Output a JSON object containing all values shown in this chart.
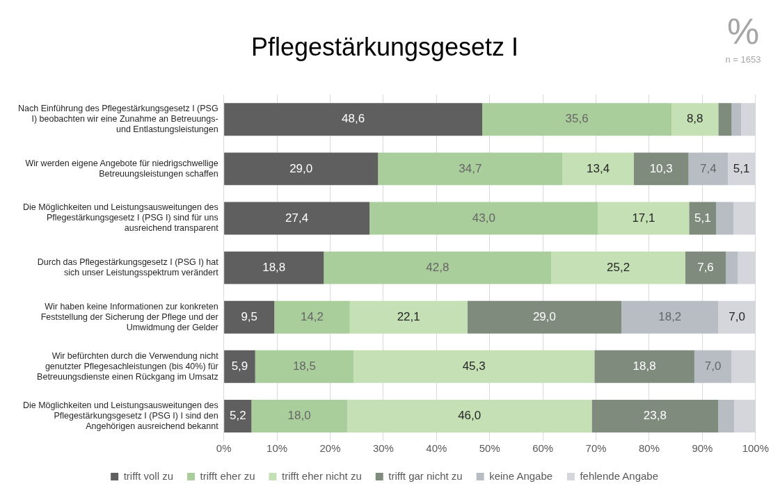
{
  "chart_data": {
    "type": "bar",
    "orientation": "horizontal",
    "stacked": true,
    "title": "Pflegestärkungsgesetz I",
    "annotations": [
      "%",
      "n = 1653"
    ],
    "categories": [
      "Nach Einführung des Pflegestärkungsgesetz I (PSG I) beobachten wir eine Zunahme an Betreuungs- und Entlastungsleistungen",
      "Wir werden eigene Angebote für niedrigschwellige Betreuungsleistungen schaffen",
      "Die Möglichkeiten und Leistungsausweitungen des Pflegestärkungsgesetz I (PSG I) sind für uns ausreichend transparent",
      "Durch das Pflegestärkungsgesetz I (PSG I) hat sich unser Leistungsspektrum verändert",
      "Wir haben keine Informationen zur konkreten Feststellung der Sicherung der Pflege und der Umwidmung der Gelder",
      "Wir befürchten durch die Verwendung nicht genutzter Pflegesachleistungen (bis 40%) für Betreuungsdienste einen Rückgang im Umsatz",
      "Die Möglichkeiten und Leistungsausweitungen des Pflegestärkungsgesetz I (PSG I) I sind den Angehörigen ausreichend bekannt"
    ],
    "series": [
      {
        "name": "trifft voll zu",
        "color": "#5f5f5f",
        "values": [
          48.6,
          29.0,
          27.4,
          18.8,
          9.5,
          5.9,
          5.2
        ],
        "value_labels": [
          "48,6",
          "29,0",
          "27,4",
          "18,8",
          "9,5",
          "5,9",
          "5,2"
        ]
      },
      {
        "name": "trifft eher zu",
        "color": "#a9cd9b",
        "values": [
          35.6,
          34.7,
          43.0,
          42.8,
          14.2,
          18.5,
          18.0
        ],
        "value_labels": [
          "35,6",
          "34,7",
          "43,0",
          "42,8",
          "14,2",
          "18,5",
          "18,0"
        ]
      },
      {
        "name": "trifft eher nicht zu",
        "color": "#c5e0b4",
        "values": [
          8.8,
          13.4,
          17.1,
          25.2,
          22.1,
          45.3,
          46.0
        ],
        "value_labels": [
          "8,8",
          "13,4",
          "17,1",
          "25,2",
          "22,1",
          "45,3",
          "46,0"
        ]
      },
      {
        "name": "trifft gar nicht zu",
        "color": "#7f8c7d",
        "values": [
          2.5,
          10.3,
          5.1,
          7.6,
          29.0,
          18.8,
          23.8
        ],
        "value_labels": [
          null,
          "10,3",
          "5,1",
          "7,6",
          "29,0",
          "18,8",
          "23,8"
        ]
      },
      {
        "name": "keine Angabe",
        "color": "#b8bcc3",
        "values": [
          1.8,
          7.4,
          3.3,
          2.3,
          18.2,
          7.0,
          3.0
        ],
        "value_labels": [
          null,
          "7,4",
          null,
          null,
          "18,2",
          "7,0",
          null
        ]
      },
      {
        "name": "fehlende Angabe",
        "color": "#d4d6db",
        "values": [
          2.7,
          5.1,
          4.1,
          3.3,
          7.0,
          4.5,
          4.0
        ],
        "value_labels": [
          null,
          "5,1",
          null,
          null,
          "7,0",
          null,
          null
        ]
      }
    ],
    "xlim": [
      0,
      100
    ],
    "xticks": [
      {
        "value": 0,
        "label": "0%"
      },
      {
        "value": 10,
        "label": "10%"
      },
      {
        "value": 20,
        "label": "20%"
      },
      {
        "value": 30,
        "label": "30%"
      },
      {
        "value": 40,
        "label": "40%"
      },
      {
        "value": 50,
        "label": "50%"
      },
      {
        "value": 60,
        "label": "60%"
      },
      {
        "value": 70,
        "label": "70%"
      },
      {
        "value": 80,
        "label": "80%"
      },
      {
        "value": 90,
        "label": "90%"
      },
      {
        "value": 100,
        "label": "100%"
      }
    ],
    "grid": "x",
    "legend": "bottom"
  }
}
